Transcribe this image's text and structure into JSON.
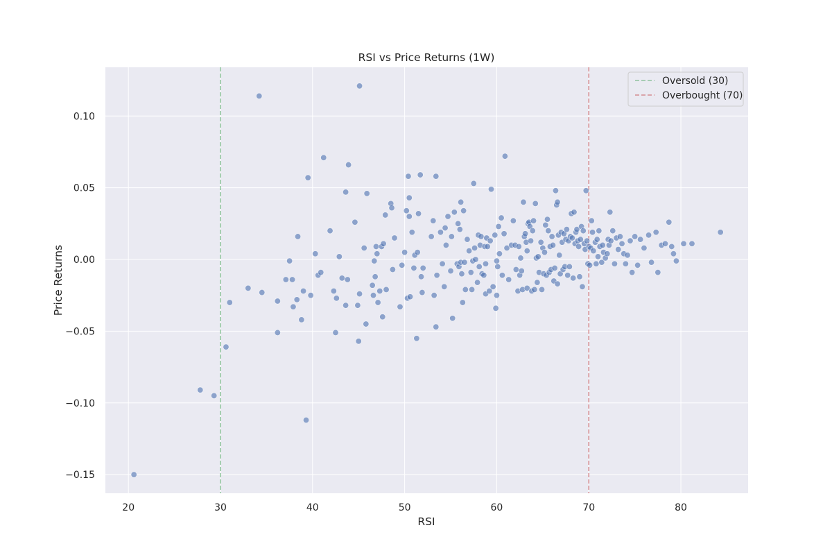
{
  "chart_data": {
    "type": "scatter",
    "title": "RSI vs Price Returns (1W)",
    "xlabel": "RSI",
    "ylabel": "Price Returns",
    "xlim": [
      17.5,
      87.3
    ],
    "ylim": [
      -0.163,
      0.134
    ],
    "xticks": [
      20,
      30,
      40,
      50,
      60,
      70,
      80
    ],
    "yticks": [
      -0.15,
      -0.1,
      -0.05,
      0.0,
      0.05,
      0.1
    ],
    "ytick_labels": [
      "−0.15",
      "−0.10",
      "−0.05",
      "0.00",
      "0.05",
      "0.10"
    ],
    "grid": true,
    "legend_position": "top-right",
    "colors": {
      "background": "#eaeaf2",
      "grid": "#ffffff",
      "points": "#4c72b0",
      "oversold": "#55a868",
      "overbought": "#c44e52"
    },
    "reference_lines": [
      {
        "label": "Oversold (30)",
        "x": 30,
        "color": "#55a868",
        "style": "dashed"
      },
      {
        "label": "Overbought (70)",
        "x": 70,
        "color": "#c44e52",
        "style": "dashed"
      }
    ],
    "points": [
      [
        20.6,
        -0.15
      ],
      [
        27.8,
        -0.091
      ],
      [
        29.3,
        -0.095
      ],
      [
        30.6,
        -0.061
      ],
      [
        31.0,
        -0.03
      ],
      [
        33.0,
        -0.02
      ],
      [
        34.2,
        0.114
      ],
      [
        34.5,
        -0.023
      ],
      [
        36.2,
        -0.029
      ],
      [
        36.2,
        -0.051
      ],
      [
        37.1,
        -0.014
      ],
      [
        37.5,
        -0.001
      ],
      [
        37.8,
        -0.014
      ],
      [
        37.9,
        -0.033
      ],
      [
        38.3,
        -0.028
      ],
      [
        38.4,
        0.016
      ],
      [
        38.8,
        -0.042
      ],
      [
        39.0,
        -0.022
      ],
      [
        39.3,
        -0.112
      ],
      [
        39.5,
        0.057
      ],
      [
        39.8,
        -0.025
      ],
      [
        40.3,
        0.004
      ],
      [
        40.6,
        -0.011
      ],
      [
        40.9,
        -0.009
      ],
      [
        41.2,
        0.071
      ],
      [
        41.9,
        0.02
      ],
      [
        42.3,
        -0.022
      ],
      [
        42.5,
        -0.051
      ],
      [
        42.6,
        -0.027
      ],
      [
        42.9,
        0.002
      ],
      [
        43.2,
        -0.013
      ],
      [
        43.6,
        -0.032
      ],
      [
        43.6,
        0.047
      ],
      [
        43.8,
        -0.014
      ],
      [
        43.9,
        0.066
      ],
      [
        44.6,
        0.026
      ],
      [
        44.9,
        -0.032
      ],
      [
        45.0,
        -0.057
      ],
      [
        45.1,
        0.121
      ],
      [
        45.1,
        -0.024
      ],
      [
        45.6,
        0.008
      ],
      [
        45.8,
        -0.045
      ],
      [
        45.9,
        0.046
      ],
      [
        46.5,
        -0.018
      ],
      [
        46.6,
        -0.025
      ],
      [
        46.7,
        -0.001
      ],
      [
        46.8,
        -0.012
      ],
      [
        46.9,
        0.009
      ],
      [
        47.0,
        0.004
      ],
      [
        47.1,
        -0.03
      ],
      [
        47.3,
        -0.022
      ],
      [
        47.5,
        0.009
      ],
      [
        47.6,
        -0.04
      ],
      [
        47.7,
        0.011
      ],
      [
        47.9,
        0.031
      ],
      [
        48.0,
        -0.021
      ],
      [
        48.5,
        0.039
      ],
      [
        48.6,
        0.036
      ],
      [
        48.7,
        -0.007
      ],
      [
        48.9,
        0.015
      ],
      [
        49.5,
        -0.033
      ],
      [
        49.7,
        -0.004
      ],
      [
        50.0,
        0.005
      ],
      [
        50.2,
        0.034
      ],
      [
        50.3,
        -0.027
      ],
      [
        50.4,
        0.058
      ],
      [
        50.5,
        0.043
      ],
      [
        50.5,
        0.03
      ],
      [
        50.6,
        -0.026
      ],
      [
        50.8,
        0.019
      ],
      [
        51.0,
        -0.006
      ],
      [
        51.1,
        0.003
      ],
      [
        51.3,
        -0.055
      ],
      [
        51.4,
        0.005
      ],
      [
        51.5,
        0.032
      ],
      [
        51.7,
        0.059
      ],
      [
        51.8,
        -0.012
      ],
      [
        51.9,
        -0.023
      ],
      [
        52.0,
        -0.006
      ],
      [
        52.9,
        0.016
      ],
      [
        53.1,
        0.027
      ],
      [
        53.2,
        -0.025
      ],
      [
        53.4,
        0.058
      ],
      [
        53.4,
        -0.047
      ],
      [
        53.5,
        -0.011
      ],
      [
        53.9,
        0.019
      ],
      [
        54.1,
        -0.003
      ],
      [
        54.3,
        -0.019
      ],
      [
        54.4,
        0.022
      ],
      [
        54.5,
        0.01
      ],
      [
        54.7,
        0.03
      ],
      [
        55.0,
        -0.008
      ],
      [
        55.1,
        0.016
      ],
      [
        55.2,
        -0.041
      ],
      [
        55.4,
        0.033
      ],
      [
        55.7,
        -0.003
      ],
      [
        55.8,
        0.025
      ],
      [
        55.9,
        -0.005
      ],
      [
        56.0,
        0.021
      ],
      [
        56.1,
        0.04
      ],
      [
        56.1,
        -0.002
      ],
      [
        56.2,
        -0.01
      ],
      [
        56.3,
        -0.03
      ],
      [
        56.4,
        0.034
      ],
      [
        56.5,
        -0.002
      ],
      [
        56.6,
        -0.021
      ],
      [
        56.8,
        0.014
      ],
      [
        57.0,
        0.006
      ],
      [
        57.2,
        -0.009
      ],
      [
        57.3,
        -0.021
      ],
      [
        57.4,
        -0.001
      ],
      [
        57.5,
        0.053
      ],
      [
        57.6,
        0.008
      ],
      [
        57.7,
        0.0
      ],
      [
        57.9,
        -0.016
      ],
      [
        58.0,
        0.017
      ],
      [
        58.1,
        -0.005
      ],
      [
        58.2,
        0.01
      ],
      [
        58.3,
        0.016
      ],
      [
        58.4,
        -0.01
      ],
      [
        58.6,
        -0.011
      ],
      [
        58.7,
        0.009
      ],
      [
        58.8,
        -0.003
      ],
      [
        58.8,
        -0.024
      ],
      [
        58.9,
        0.015
      ],
      [
        59.0,
        0.009
      ],
      [
        59.2,
        -0.022
      ],
      [
        59.3,
        0.013
      ],
      [
        59.4,
        0.049
      ],
      [
        59.6,
        -0.019
      ],
      [
        59.8,
        0.017
      ],
      [
        59.9,
        -0.034
      ],
      [
        60.0,
        -0.025
      ],
      [
        60.0,
        -0.001
      ],
      [
        60.1,
        -0.005
      ],
      [
        60.2,
        0.023
      ],
      [
        60.3,
        0.004
      ],
      [
        60.5,
        0.029
      ],
      [
        60.6,
        -0.011
      ],
      [
        60.8,
        0.018
      ],
      [
        60.9,
        0.072
      ],
      [
        61.1,
        0.008
      ],
      [
        61.3,
        -0.014
      ],
      [
        61.6,
        0.01
      ],
      [
        61.8,
        0.027
      ],
      [
        62.0,
        0.01
      ],
      [
        62.1,
        -0.007
      ],
      [
        62.3,
        -0.022
      ],
      [
        62.4,
        0.009
      ],
      [
        62.5,
        -0.011
      ],
      [
        62.6,
        0.001
      ],
      [
        62.7,
        -0.008
      ],
      [
        62.8,
        -0.021
      ],
      [
        62.9,
        0.04
      ],
      [
        63.0,
        0.016
      ],
      [
        63.1,
        0.018
      ],
      [
        63.2,
        0.012
      ],
      [
        63.3,
        -0.02
      ],
      [
        63.3,
        0.006
      ],
      [
        63.4,
        0.025
      ],
      [
        63.5,
        0.026
      ],
      [
        63.6,
        0.023
      ],
      [
        63.7,
        0.013
      ],
      [
        63.8,
        -0.022
      ],
      [
        63.9,
        0.02
      ],
      [
        64.0,
        0.027
      ],
      [
        64.1,
        -0.021
      ],
      [
        64.2,
        0.039
      ],
      [
        64.3,
        0.001
      ],
      [
        64.4,
        -0.016
      ],
      [
        64.5,
        0.002
      ],
      [
        64.6,
        -0.009
      ],
      [
        64.8,
        0.012
      ],
      [
        64.9,
        -0.021
      ],
      [
        65.0,
        0.008
      ],
      [
        65.1,
        -0.01
      ],
      [
        65.2,
        0.005
      ],
      [
        65.3,
        0.024
      ],
      [
        65.4,
        -0.011
      ],
      [
        65.5,
        0.028
      ],
      [
        65.6,
        0.02
      ],
      [
        65.7,
        -0.009
      ],
      [
        65.8,
        0.009
      ],
      [
        65.9,
        -0.007
      ],
      [
        66.0,
        0.016
      ],
      [
        66.1,
        0.01
      ],
      [
        66.2,
        -0.015
      ],
      [
        66.3,
        -0.006
      ],
      [
        66.4,
        0.048
      ],
      [
        66.5,
        0.038
      ],
      [
        66.6,
        0.04
      ],
      [
        66.6,
        -0.017
      ],
      [
        66.7,
        0.017
      ],
      [
        66.8,
        0.003
      ],
      [
        66.9,
        -0.01
      ],
      [
        67.0,
        0.019
      ],
      [
        67.1,
        0.012
      ],
      [
        67.2,
        -0.007
      ],
      [
        67.3,
        0.018
      ],
      [
        67.4,
        -0.005
      ],
      [
        67.5,
        0.014
      ],
      [
        67.6,
        0.021
      ],
      [
        67.7,
        -0.011
      ],
      [
        67.8,
        0.013
      ],
      [
        67.9,
        -0.005
      ],
      [
        68.0,
        0.016
      ],
      [
        68.1,
        0.032
      ],
      [
        68.2,
        0.015
      ],
      [
        68.3,
        -0.013
      ],
      [
        68.4,
        0.033
      ],
      [
        68.5,
        0.011
      ],
      [
        68.6,
        0.019
      ],
      [
        68.7,
        0.021
      ],
      [
        68.8,
        0.013
      ],
      [
        68.9,
        0.009
      ],
      [
        69.0,
        -0.012
      ],
      [
        69.1,
        0.014
      ],
      [
        69.2,
        0.023
      ],
      [
        69.3,
        -0.019
      ],
      [
        69.4,
        0.02
      ],
      [
        69.5,
        0.011
      ],
      [
        69.6,
        0.007
      ],
      [
        69.7,
        0.048
      ],
      [
        69.8,
        0.013
      ],
      [
        69.9,
        -0.003
      ],
      [
        70.0,
        0.009
      ],
      [
        70.1,
        -0.004
      ],
      [
        70.2,
        0.008
      ],
      [
        70.3,
        0.027
      ],
      [
        70.4,
        0.019
      ],
      [
        70.5,
        0.006
      ],
      [
        70.7,
        0.012
      ],
      [
        70.8,
        -0.003
      ],
      [
        70.9,
        0.014
      ],
      [
        71.0,
        0.002
      ],
      [
        71.1,
        0.02
      ],
      [
        71.2,
        0.009
      ],
      [
        71.4,
        -0.002
      ],
      [
        71.5,
        0.01
      ],
      [
        71.6,
        0.005
      ],
      [
        71.8,
        0.001
      ],
      [
        72.0,
        0.004
      ],
      [
        72.1,
        0.014
      ],
      [
        72.2,
        0.01
      ],
      [
        72.3,
        0.033
      ],
      [
        72.4,
        0.013
      ],
      [
        72.6,
        0.02
      ],
      [
        72.8,
        -0.003
      ],
      [
        73.0,
        0.015
      ],
      [
        73.2,
        0.007
      ],
      [
        73.4,
        0.016
      ],
      [
        73.6,
        0.011
      ],
      [
        73.8,
        0.004
      ],
      [
        74.0,
        -0.003
      ],
      [
        74.2,
        0.003
      ],
      [
        74.5,
        0.013
      ],
      [
        74.7,
        -0.009
      ],
      [
        75.0,
        0.016
      ],
      [
        75.3,
        -0.004
      ],
      [
        75.6,
        0.014
      ],
      [
        76.0,
        0.008
      ],
      [
        76.5,
        0.017
      ],
      [
        76.8,
        -0.002
      ],
      [
        77.3,
        0.019
      ],
      [
        77.5,
        -0.009
      ],
      [
        77.9,
        0.01
      ],
      [
        78.3,
        0.011
      ],
      [
        78.7,
        0.026
      ],
      [
        79.0,
        0.009
      ],
      [
        79.2,
        0.004
      ],
      [
        79.5,
        -0.001
      ],
      [
        80.3,
        0.011
      ],
      [
        81.2,
        0.011
      ],
      [
        84.3,
        0.019
      ]
    ]
  }
}
